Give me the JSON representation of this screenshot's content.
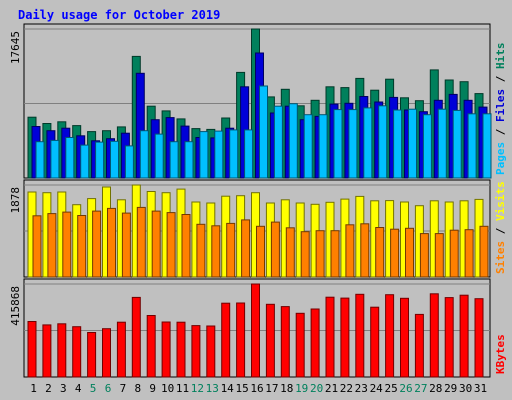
{
  "chart_data": {
    "type": "bar",
    "title": "Daily usage for October 2019",
    "categories": [
      "1",
      "2",
      "3",
      "4",
      "5",
      "6",
      "7",
      "8",
      "9",
      "10",
      "11",
      "12",
      "13",
      "14",
      "15",
      "16",
      "17",
      "18",
      "19",
      "20",
      "21",
      "22",
      "23",
      "24",
      "25",
      "26",
      "27",
      "28",
      "29",
      "30",
      "31"
    ],
    "weekend_days": [
      "5",
      "6",
      "12",
      "13",
      "19",
      "20",
      "26",
      "27"
    ],
    "panels": [
      {
        "id": "hits-files-pages",
        "ymax_label": "17645",
        "ylim": [
          0,
          17645
        ],
        "legend": [
          "Pages",
          "Files",
          "Hits"
        ],
        "series": [
          {
            "name": "Hits",
            "color": "#00805c",
            "values": [
              7200,
              6450,
              6650,
              6200,
              5500,
              5600,
              6050,
              14400,
              8500,
              7950,
              7000,
              5850,
              5750,
              7100,
              12500,
              17645,
              9600,
              10500,
              8550,
              9200,
              10800,
              10700,
              11800,
              10400,
              11700,
              9500,
              9150,
              12800,
              11600,
              11400,
              10000
            ]
          },
          {
            "name": "Files",
            "color": "#0000d8",
            "values": [
              6100,
              5600,
              5900,
              5000,
              4400,
              4650,
              5300,
              12400,
              6900,
              7150,
              6150,
              4800,
              4750,
              5900,
              10800,
              14800,
              7700,
              8500,
              6900,
              7300,
              8750,
              8850,
              9650,
              9000,
              9550,
              8050,
              7850,
              9200,
              9900,
              9200,
              8400
            ]
          },
          {
            "name": "Pages",
            "color": "#00c0ff",
            "values": [
              4300,
              4450,
              4800,
              3900,
              4250,
              4350,
              3800,
              5600,
              5200,
              4300,
              4300,
              5500,
              5550,
              5700,
              5700,
              10900,
              8500,
              8800,
              7500,
              7500,
              8100,
              8100,
              8300,
              8550,
              8050,
              8150,
              7500,
              8150,
              8000,
              7600,
              7600
            ]
          }
        ]
      },
      {
        "id": "visits-sites",
        "ymax_label": "1878",
        "ylim": [
          0,
          1878
        ],
        "legend": [
          "Sites",
          "Visits"
        ],
        "series": [
          {
            "name": "Visits",
            "color": "#ffff00",
            "values": [
              1735,
              1720,
              1735,
              1475,
              1600,
              1838,
              1575,
              1878,
              1745,
              1720,
              1795,
              1530,
              1510,
              1650,
              1660,
              1720,
              1510,
              1575,
              1510,
              1485,
              1525,
              1590,
              1645,
              1555,
              1560,
              1530,
              1455,
              1555,
              1530,
              1555,
              1585
            ]
          },
          {
            "name": "Sites",
            "color": "#ff8000",
            "values": [
              1250,
              1295,
              1325,
              1255,
              1345,
              1400,
              1305,
              1420,
              1345,
              1315,
              1275,
              1075,
              1045,
              1095,
              1165,
              1035,
              1120,
              1005,
              925,
              945,
              945,
              1065,
              1085,
              1010,
              975,
              995,
              885,
              885,
              955,
              965,
              1035
            ]
          }
        ]
      },
      {
        "id": "kbytes",
        "ymax_label": "415868",
        "ylim": [
          0,
          415868
        ],
        "legend": [
          "KBytes"
        ],
        "series": [
          {
            "name": "KBytes",
            "color": "#ff0000",
            "values": [
              248000,
              233000,
              238000,
              225000,
              199000,
              216000,
              245000,
              356000,
              275000,
              246000,
              245000,
              230000,
              228000,
              330000,
              331000,
              415868,
              325000,
              315000,
              285000,
              304000,
              357000,
              353000,
              370000,
              312000,
              368000,
              352000,
              280000,
              372000,
              355000,
              366000,
              350000
            ]
          }
        ]
      }
    ],
    "grid": true
  }
}
